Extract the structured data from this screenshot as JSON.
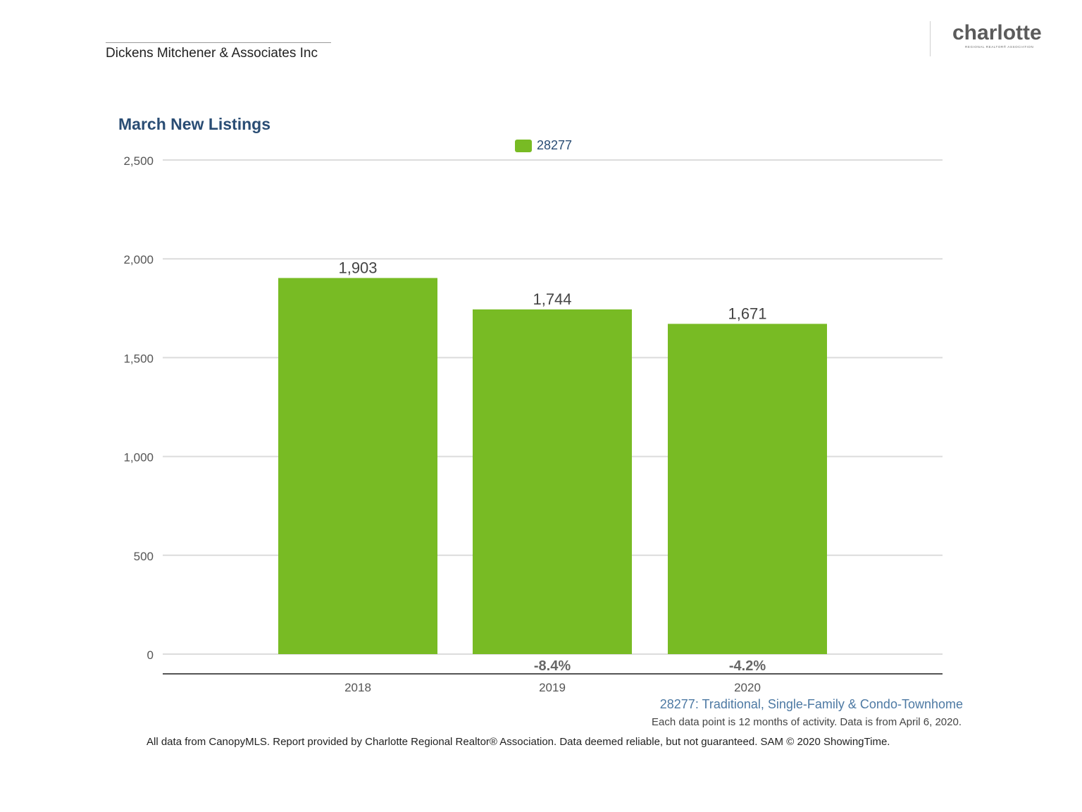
{
  "header": {
    "company": "Dickens Mitchener & Associates Inc"
  },
  "logo": {
    "wordmark": "charlotte",
    "subtitle": "REGIONAL REALTOR® ASSOCIATION"
  },
  "legend": {
    "label": "28277",
    "color": "#78bb24"
  },
  "chart_data": {
    "type": "bar",
    "title": "March New Listings",
    "categories": [
      "2018",
      "2019",
      "2020"
    ],
    "series": [
      {
        "name": "28277",
        "values": [
          1903,
          1744,
          1671
        ],
        "color": "#78bb24"
      }
    ],
    "data_labels": [
      "1,903",
      "1,744",
      "1,671"
    ],
    "change_labels": [
      "",
      "-8.4%",
      "-4.2%"
    ],
    "y_ticks": [
      0,
      500,
      1000,
      1500,
      2000,
      2500
    ],
    "y_tick_labels": [
      "0",
      "500",
      "1,000",
      "1,500",
      "2,000",
      "2,500"
    ],
    "ylim": [
      0,
      2500
    ],
    "xlabel": "",
    "ylabel": "",
    "grid": true,
    "legend_position": "top-center"
  },
  "captions": {
    "series_description": "28277: Traditional, Single-Family & Condo-Townhome",
    "note": "Each data point is 12 months of activity. Data is from April 6, 2020."
  },
  "footer": {
    "text": "All data from CanopyMLS. Report provided by Charlotte Regional Realtor® Association. Data deemed reliable, but not guaranteed. SAM © 2020 ShowingTime."
  }
}
